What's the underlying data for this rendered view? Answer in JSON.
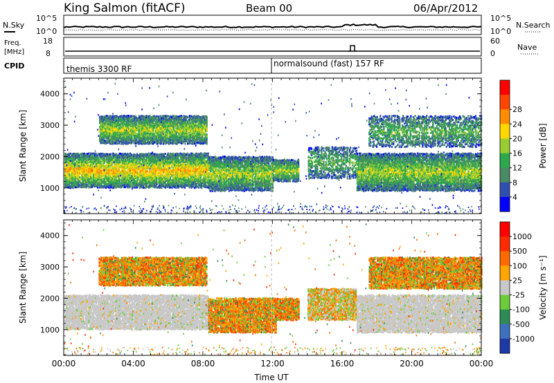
{
  "header": {
    "station": "King Salmon (fitACF)",
    "beam": "Beam 00",
    "date": "06/Apr/2012"
  },
  "summary": {
    "nsky_label": "N.Sky",
    "nsky_ticks": [
      "10^5",
      "10^0"
    ],
    "nsearch_label": "N.Search",
    "nsearch_ticks": [
      "10^5",
      "10^0"
    ],
    "freq_label_1": "Freq.",
    "freq_label_2": "[MHz]",
    "freq_ticks": [
      "18",
      "8"
    ],
    "nave_label": "Nave",
    "nave_ticks": [
      "60",
      "0"
    ],
    "cpid_label": "CPID",
    "cpid_segments": [
      {
        "name": "themis 3300 RF",
        "start_hour": 0
      },
      {
        "name": "normalsound (fast) 157 RF",
        "start_hour": 12
      }
    ]
  },
  "chart_data": [
    {
      "type": "heatmap",
      "panel": "power",
      "ylabel": "Slant Range [km]",
      "xlabel": "",
      "xlim_hours": [
        0,
        24
      ],
      "ylim_km": [
        180,
        4500
      ],
      "y_ticks": [
        1000,
        2000,
        3000,
        4000
      ],
      "colorbar": {
        "label": "Power [dB]",
        "ticks": [
          "4",
          "8",
          "12",
          "16",
          "20",
          "24",
          "28"
        ],
        "colors": [
          "#0000ff",
          "#3050b0",
          "#4a8a64",
          "#2da84d",
          "#9acd32",
          "#ffd700",
          "#ff8c00",
          "#ff4500",
          "#ff0000"
        ]
      },
      "echo_regions": [
        {
          "t0": 0.0,
          "t1": 8.3,
          "r0": 1000,
          "r1": 2100,
          "level": "high"
        },
        {
          "t0": 8.3,
          "t1": 12.0,
          "r0": 900,
          "r1": 2000,
          "level": "medium"
        },
        {
          "t0": 12.0,
          "t1": 13.5,
          "r0": 1200,
          "r1": 1900,
          "level": "medium"
        },
        {
          "t0": 14.0,
          "t1": 16.8,
          "r0": 1300,
          "r1": 2300,
          "level": "low"
        },
        {
          "t0": 16.8,
          "t1": 24.0,
          "r0": 900,
          "r1": 2100,
          "level": "medium"
        },
        {
          "t0": 2.0,
          "t1": 8.2,
          "r0": 2400,
          "r1": 3300,
          "level": "medium"
        },
        {
          "t0": 17.5,
          "t1": 24.0,
          "r0": 2300,
          "r1": 3300,
          "level": "low"
        }
      ]
    },
    {
      "type": "heatmap",
      "panel": "velocity",
      "ylabel": "Slant Range [km]",
      "xlabel": "Time UT",
      "xlim_hours": [
        0,
        24
      ],
      "ylim_km": [
        180,
        4500
      ],
      "y_ticks": [
        1000,
        2000,
        3000,
        4000
      ],
      "x_ticks": [
        "00:00",
        "04:00",
        "08:00",
        "12:00",
        "16:00",
        "20:00",
        "00:00"
      ],
      "colorbar": {
        "label": "Velocity [m s⁻¹]",
        "ticks": [
          "1000",
          "500",
          "100",
          "25",
          "-25",
          "-100",
          "-500",
          "-1000"
        ],
        "colors": [
          "#1e3aa8",
          "#3f6fbf",
          "#2e8b57",
          "#6dcc3a",
          "#c8c8c8",
          "#ffa500",
          "#ff6a00",
          "#ff2a00",
          "#ff0000"
        ]
      },
      "echo_regions": [
        {
          "t0": 0.0,
          "t1": 8.3,
          "r0": 1000,
          "r1": 2100,
          "level": "ground"
        },
        {
          "t0": 8.3,
          "t1": 12.2,
          "r0": 900,
          "r1": 2000,
          "level": "ionosphere"
        },
        {
          "t0": 12.2,
          "t1": 13.5,
          "r0": 1300,
          "r1": 2000,
          "level": "ionosphere"
        },
        {
          "t0": 14.0,
          "t1": 16.8,
          "r0": 1300,
          "r1": 2300,
          "level": "mixed"
        },
        {
          "t0": 16.8,
          "t1": 24.0,
          "r0": 900,
          "r1": 2100,
          "level": "ground"
        },
        {
          "t0": 2.0,
          "t1": 8.2,
          "r0": 2400,
          "r1": 3300,
          "level": "ionosphere"
        },
        {
          "t0": 17.5,
          "t1": 24.0,
          "r0": 2300,
          "r1": 3300,
          "level": "ionosphere"
        }
      ]
    }
  ]
}
